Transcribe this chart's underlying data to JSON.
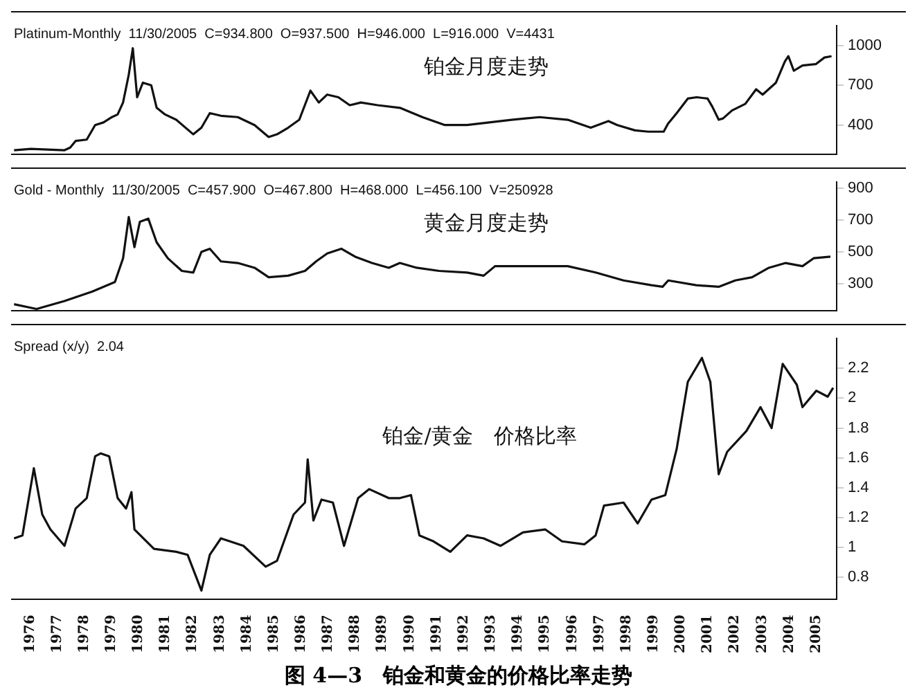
{
  "chart_data": [
    {
      "type": "line",
      "annotations": [
        "Platinum-Monthly  11/30/2005  C=934.800  O=937.500  H=946.000  L=916.000  V=4431",
        "铂金月度走势"
      ],
      "x": [
        1975.41,
        1976.03,
        1977.27,
        1977.48,
        1977.68,
        1978.09,
        1978.4,
        1978.71,
        1979.02,
        1979.23,
        1979.43,
        1979.64,
        1979.79,
        1979.95,
        1980.16,
        1980.47,
        1980.67,
        1980.98,
        1981.39,
        1982.02,
        1982.32,
        1982.63,
        1983.04,
        1983.66,
        1984.28,
        1984.8,
        1985.11,
        1985.52,
        1985.93,
        1986.34,
        1986.65,
        1986.96,
        1987.37,
        1987.79,
        1988.2,
        1988.82,
        1989.64,
        1990.47,
        1991.3,
        1992.12,
        1992.94,
        1993.76,
        1994.79,
        1995.83,
        1996.68,
        1997.33,
        1997.66,
        1998.31,
        1998.8,
        1999.37,
        1999.53,
        1999.85,
        2000.26,
        2000.59,
        2000.99,
        2001.16,
        2001.4,
        2001.56,
        2001.89,
        2002.38,
        2002.78,
        2003.02,
        2003.51,
        2003.84,
        2003.97,
        2004.17,
        2004.49,
        2004.98,
        2005.3,
        2005.56
      ],
      "series": [
        {
          "color": "#111111",
          "values": [
            210,
            220,
            210,
            230,
            280,
            290,
            400,
            420,
            460,
            480,
            570,
            780,
            980,
            610,
            720,
            700,
            530,
            480,
            440,
            330,
            380,
            490,
            470,
            460,
            400,
            310,
            330,
            380,
            440,
            660,
            570,
            630,
            610,
            550,
            570,
            550,
            530,
            460,
            400,
            400,
            420,
            440,
            460,
            440,
            380,
            430,
            400,
            360,
            350,
            350,
            410,
            490,
            600,
            610,
            600,
            540,
            440,
            450,
            510,
            560,
            670,
            630,
            720,
            880,
            920,
            810,
            850,
            860,
            910,
            920
          ]
        }
      ],
      "xlim": [
        1975.3,
        2005.75
      ],
      "ylim": [
        180,
        1150
      ],
      "yticks": [
        400,
        700,
        1000
      ],
      "xticks": [
        1976,
        1977,
        1978,
        1979,
        1980,
        1981,
        1982,
        1983,
        1984,
        1985,
        1986,
        1987,
        1988,
        1989,
        1990,
        1991,
        1992,
        1993,
        1994,
        1995,
        1996,
        1997,
        1998,
        1999,
        2000,
        2001,
        2002,
        2003,
        2004,
        2005
      ],
      "tick_labels": "y"
    },
    {
      "type": "line",
      "annotations": [
        "Gold - Monthly  11/30/2005  C=457.900  O=467.800  H=468.000  L=456.100  V=250928",
        "黄金月度走势"
      ],
      "x": [
        1975.41,
        1976.24,
        1977.27,
        1978.3,
        1979.13,
        1979.43,
        1979.64,
        1979.85,
        1980.05,
        1980.36,
        1980.67,
        1981.08,
        1981.6,
        1982.02,
        1982.32,
        1982.63,
        1983.04,
        1983.66,
        1984.28,
        1984.8,
        1985.52,
        1986.14,
        1986.55,
        1986.96,
        1987.48,
        1987.99,
        1988.61,
        1989.23,
        1989.64,
        1990.26,
        1991.09,
        1992.12,
        1992.73,
        1993.15,
        1993.76,
        1994.79,
        1995.83,
        1996.86,
        1997.89,
        1998.92,
        1999.33,
        1999.54,
        2000.57,
        2001.4,
        2002.01,
        2002.63,
        2003.25,
        2003.87,
        2004.49,
        2004.9,
        2005.52
      ],
      "series": [
        {
          "color": "#111111",
          "values": [
            170,
            140,
            190,
            250,
            310,
            460,
            720,
            530,
            690,
            710,
            560,
            460,
            380,
            370,
            500,
            520,
            440,
            430,
            400,
            340,
            350,
            380,
            440,
            490,
            520,
            470,
            430,
            400,
            430,
            400,
            380,
            370,
            350,
            410,
            410,
            410,
            410,
            370,
            320,
            290,
            280,
            320,
            290,
            280,
            320,
            340,
            400,
            430,
            410,
            460,
            470
          ]
        }
      ],
      "xlim": [
        1975.3,
        2005.75
      ],
      "ylim": [
        130,
        940
      ],
      "yticks": [
        300,
        500,
        700,
        900
      ],
      "xticks": [
        1976,
        1977,
        1978,
        1979,
        1980,
        1981,
        1982,
        1983,
        1984,
        1985,
        1986,
        1987,
        1988,
        1989,
        1990,
        1991,
        1992,
        1993,
        1994,
        1995,
        1996,
        1997,
        1998,
        1999,
        2000,
        2001,
        2002,
        2003,
        2004,
        2005
      ],
      "tick_labels": "y"
    },
    {
      "type": "line",
      "annotations": [
        "Spread (x/y)  2.04",
        "铂金/黄金　价格比率",
        "图 4—3　铂金和黄金的价格比率走势"
      ],
      "x": [
        1975.41,
        1975.72,
        1976.14,
        1976.45,
        1976.75,
        1977.27,
        1977.68,
        1978.09,
        1978.4,
        1978.61,
        1978.92,
        1979.23,
        1979.54,
        1979.74,
        1979.85,
        1980.57,
        1981.39,
        1981.81,
        1982.32,
        1982.63,
        1983.04,
        1983.87,
        1984.69,
        1985.11,
        1985.72,
        1986.14,
        1986.24,
        1986.45,
        1986.75,
        1987.17,
        1987.58,
        1988.1,
        1988.51,
        1989.23,
        1989.64,
        1990.05,
        1990.36,
        1990.88,
        1991.5,
        1992.12,
        1992.73,
        1993.35,
        1994.18,
        1995.0,
        1995.62,
        1996.45,
        1996.86,
        1997.17,
        1997.89,
        1998.41,
        1998.92,
        1999.43,
        1999.85,
        2000.26,
        2000.78,
        2001.09,
        2001.4,
        2001.71,
        2002.42,
        2002.94,
        2003.35,
        2003.76,
        2004.28,
        2004.49,
        2005.0,
        2005.42,
        2005.62
      ],
      "series": [
        {
          "color": "#111111",
          "values": [
            1.06,
            1.08,
            1.53,
            1.22,
            1.12,
            1.01,
            1.26,
            1.33,
            1.61,
            1.63,
            1.61,
            1.33,
            1.26,
            1.37,
            1.12,
            0.99,
            0.97,
            0.95,
            0.71,
            0.95,
            1.06,
            1.01,
            0.87,
            0.91,
            1.22,
            1.3,
            1.59,
            1.18,
            1.32,
            1.3,
            1.01,
            1.33,
            1.39,
            1.33,
            1.33,
            1.35,
            1.08,
            1.04,
            0.97,
            1.08,
            1.06,
            1.01,
            1.1,
            1.12,
            1.04,
            1.02,
            1.08,
            1.28,
            1.3,
            1.16,
            1.32,
            1.35,
            1.66,
            2.11,
            2.27,
            2.11,
            1.49,
            1.64,
            1.78,
            1.94,
            1.8,
            2.23,
            2.09,
            1.94,
            2.05,
            2.01,
            2.07
          ]
        }
      ],
      "xlim": [
        1975.3,
        2005.75
      ],
      "ylim": [
        0.65,
        2.4
      ],
      "yticks": [
        0.8,
        1,
        1.2,
        1.4,
        1.6,
        1.8,
        2,
        2.2
      ],
      "xticks": [
        1976,
        1977,
        1978,
        1979,
        1980,
        1981,
        1982,
        1983,
        1984,
        1985,
        1986,
        1987,
        1988,
        1989,
        1990,
        1991,
        1992,
        1993,
        1994,
        1995,
        1996,
        1997,
        1998,
        1999,
        2000,
        2001,
        2002,
        2003,
        2004,
        2005
      ]
    }
  ]
}
